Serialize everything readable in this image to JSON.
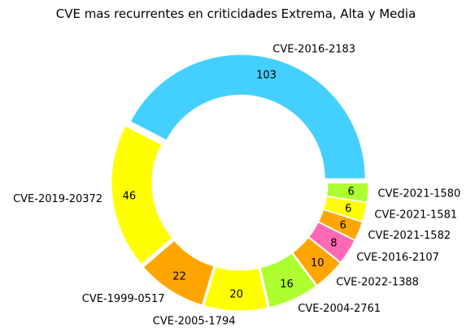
{
  "chart_data": {
    "type": "pie",
    "title": "CVE mas recurrentes en criticidades Extrema, Alta y Media",
    "slices": [
      {
        "label": "CVE-2016-2183",
        "value": 103,
        "color": "#44d0ff"
      },
      {
        "label": "CVE-2019-20372",
        "value": 46,
        "color": "#ffff00"
      },
      {
        "label": "CVE-1999-0517",
        "value": 22,
        "color": "#ffa500"
      },
      {
        "label": "CVE-2005-1794",
        "value": 20,
        "color": "#ffff00"
      },
      {
        "label": "CVE-2004-2761",
        "value": 16,
        "color": "#adff2f"
      },
      {
        "label": "CVE-2022-1388",
        "value": 10,
        "color": "#ffa500"
      },
      {
        "label": "CVE-2016-2107",
        "value": 8,
        "color": "#ff69b4"
      },
      {
        "label": "CVE-2021-1582",
        "value": 6,
        "color": "#ffa500"
      },
      {
        "label": "CVE-2021-1581",
        "value": 6,
        "color": "#ffff00"
      },
      {
        "label": "CVE-2021-1580",
        "value": 6,
        "color": "#adff2f"
      }
    ],
    "donut": true
  }
}
